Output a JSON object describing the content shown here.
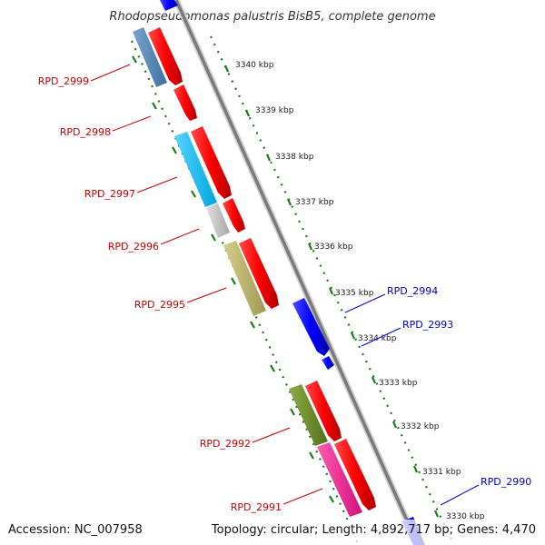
{
  "title": "Rhodopseudomonas palustris BisB5, complete genome",
  "footer": {
    "accession": "Accession: NC_007958",
    "topology": "Topology: circular; Length: 4,892,717 bp; Genes: 4,470"
  },
  "colors": {
    "forward_cds": "#ff0000",
    "reverse_cds": "#0000ff",
    "backbone": "#808080",
    "tick_marks": "#1a7a1a",
    "label_red": "#cc0000",
    "label_blue": "#0000cc"
  },
  "kbp_labels": [
    "3340 kbp",
    "3339 kbp",
    "3338 kbp",
    "3337 kbp",
    "3336 kbp",
    "3335 kbp",
    "3334 kbp",
    "3333 kbp",
    "3332 kbp",
    "3331 kbp",
    "3330 kbp"
  ],
  "gene_labels": [
    {
      "name": "RPD_2999",
      "strand": "left"
    },
    {
      "name": "RPD_2998",
      "strand": "left"
    },
    {
      "name": "RPD_2997",
      "strand": "left"
    },
    {
      "name": "RPD_2996",
      "strand": "left"
    },
    {
      "name": "RPD_2995",
      "strand": "left"
    },
    {
      "name": "RPD_2992",
      "strand": "left"
    },
    {
      "name": "RPD_2991",
      "strand": "left"
    },
    {
      "name": "RPD_2994",
      "strand": "right"
    },
    {
      "name": "RPD_2993",
      "strand": "right"
    },
    {
      "name": "RPD_2990",
      "strand": "right"
    }
  ],
  "cog_colors": [
    "#4682b4",
    "#00bfff",
    "#c0c0c0",
    "#bdb76b",
    "#6b8e23",
    "#ff1493"
  ]
}
